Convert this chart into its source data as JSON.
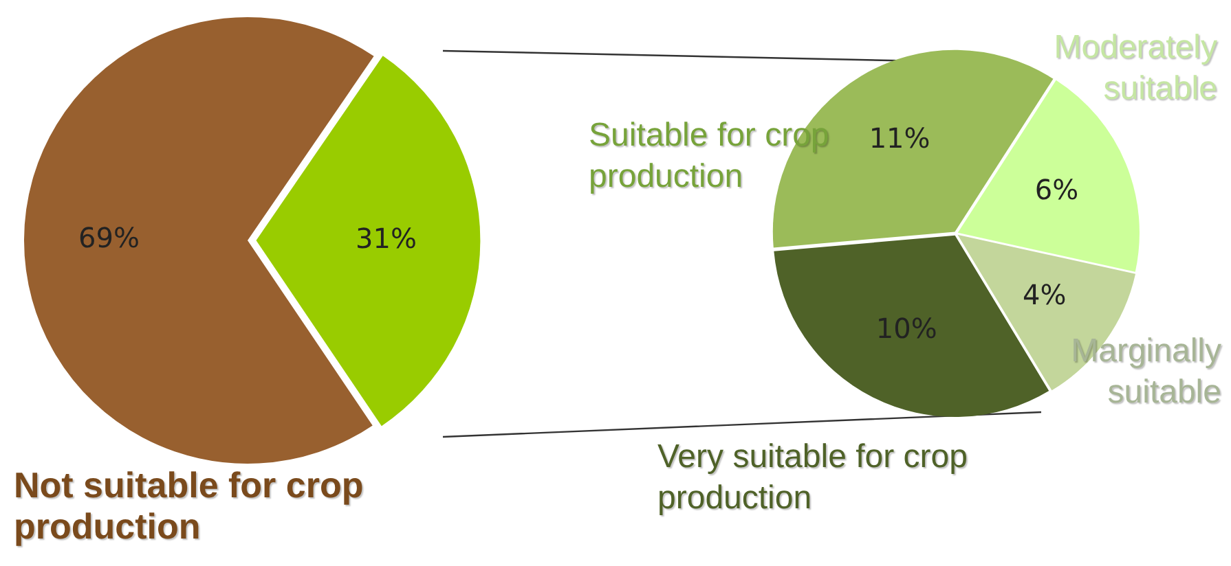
{
  "chart_data": [
    {
      "type": "pie",
      "categories": [
        "Not suitable for crop production",
        null
      ],
      "values": [
        69,
        31
      ],
      "colors": [
        "#98602f",
        "#99cc00"
      ],
      "value_labels": [
        "69%",
        "31%"
      ],
      "legend": false
    },
    {
      "type": "pie",
      "categories": [
        "Suitable for crop production",
        "Moderately suitable",
        "Marginally suitable",
        "Very suitable for crop production"
      ],
      "values": [
        11,
        6,
        4,
        10
      ],
      "colors": [
        "#9bbb59",
        "#ccff99",
        "#c3d69b",
        "#4f6228"
      ],
      "value_labels": [
        "11%",
        "6%",
        "4%",
        "10%"
      ],
      "legend": false
    }
  ]
}
